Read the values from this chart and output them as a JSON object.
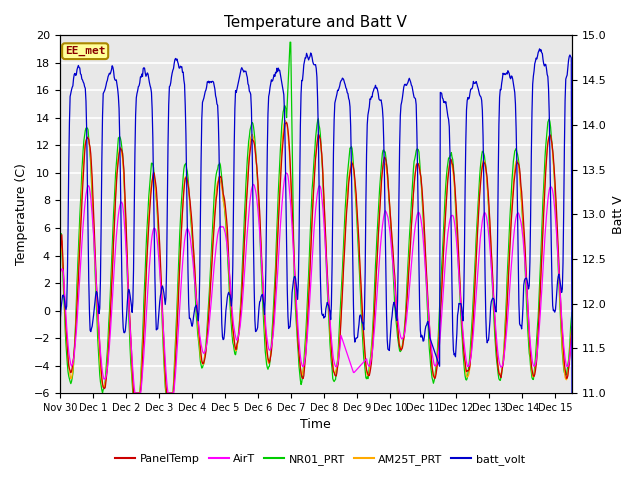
{
  "title": "Temperature and Batt V",
  "xlabel": "Time",
  "ylabel_left": "Temperature (C)",
  "ylabel_right": "Batt V",
  "ylim_left": [
    -6,
    20
  ],
  "ylim_right": [
    11.0,
    15.0
  ],
  "yticks_left": [
    -6,
    -4,
    -2,
    0,
    2,
    4,
    6,
    8,
    10,
    12,
    14,
    16,
    18,
    20
  ],
  "yticks_right": [
    11.0,
    11.5,
    12.0,
    12.5,
    13.0,
    13.5,
    14.0,
    14.5,
    15.0
  ],
  "xlim": [
    0,
    15.5
  ],
  "xtick_positions": [
    0,
    1,
    2,
    3,
    4,
    5,
    6,
    7,
    8,
    9,
    10,
    11,
    12,
    13,
    14,
    15
  ],
  "xtick_labels": [
    "Nov 30",
    "Dec 1",
    "Dec 2",
    "Dec 3",
    "Dec 4",
    "Dec 5",
    "Dec 6",
    "Dec 7",
    "Dec 8",
    "Dec 9",
    "Dec 10",
    "Dec 11",
    "Dec 12",
    "Dec 13",
    "Dec 14",
    "Dec 15"
  ],
  "series_colors": {
    "PanelTemp": "#cc0000",
    "AirT": "#ff00ff",
    "NR01_PRT": "#00cc00",
    "AM25T_PRT": "#ffaa00",
    "batt_volt": "#0000cc"
  },
  "watermark_text": "EE_met",
  "watermark_color": "#880000",
  "watermark_bg": "#ffff99",
  "watermark_border": "#aa8800",
  "plot_bg": "#e8e8e8",
  "grid_color": "#ffffff",
  "title_fontsize": 11,
  "axis_fontsize": 9,
  "tick_fontsize": 8,
  "linewidth": 0.9
}
